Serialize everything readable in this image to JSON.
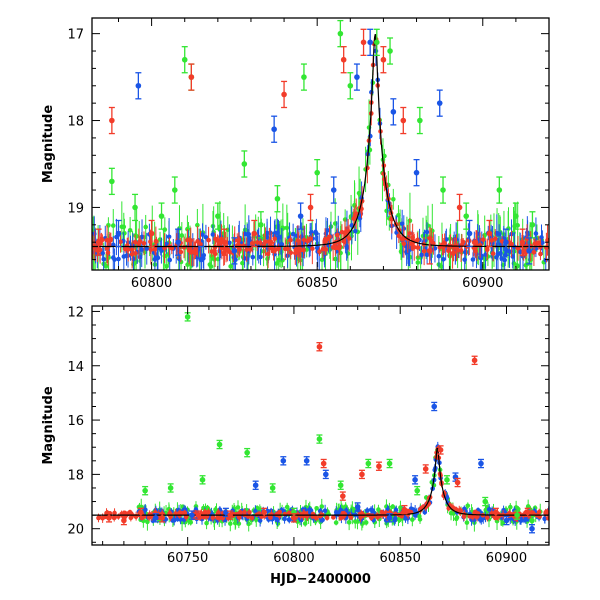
{
  "colors": {
    "green": "#33e633",
    "blue": "#1a55e6",
    "red": "#f23c2a",
    "model": "#000000",
    "frame": "#000000"
  },
  "chart_data": [
    {
      "type": "scatter",
      "panel": "top",
      "xlabel": "",
      "ylabel": "Magnitude",
      "xlim": [
        60782,
        60920
      ],
      "ylim": [
        19.72,
        16.82
      ],
      "y_inverted": true,
      "xticks": [
        60800,
        60850,
        60900
      ],
      "yticks": [
        17,
        18,
        19
      ],
      "grid": false,
      "legend": "none",
      "model_curve": {
        "peak_time": 60867.5,
        "peak_mag": 17.0,
        "baseline_mag": 19.45,
        "tE": 5.5,
        "u0": 0.11
      },
      "series": [
        {
          "color_key": "green",
          "points": [
            [
              60788,
              18.7
            ],
            [
              60795,
              19.0
            ],
            [
              60803,
              19.1
            ],
            [
              60807,
              18.8
            ],
            [
              60810,
              17.3
            ],
            [
              60812,
              17.5
            ],
            [
              60820,
              19.1
            ],
            [
              60828,
              18.5
            ],
            [
              60833,
              19.2
            ],
            [
              60838,
              18.9
            ],
            [
              60846,
              17.5
            ],
            [
              60850,
              18.6
            ],
            [
              60857,
              17.0
            ],
            [
              60860,
              17.6
            ],
            [
              60868,
              17.1
            ],
            [
              60872,
              17.2
            ],
            [
              60881,
              18.0
            ],
            [
              60888,
              18.8
            ],
            [
              60895,
              19.1
            ],
            [
              60905,
              18.8
            ],
            [
              60910,
              19.1
            ],
            [
              60915,
              19.2
            ]
          ]
        },
        {
          "color_key": "blue",
          "points": [
            [
              60790,
              19.3
            ],
            [
              60796,
              17.6
            ],
            [
              60808,
              19.4
            ],
            [
              60815,
              19.6
            ],
            [
              60825,
              19.5
            ],
            [
              60837,
              18.1
            ],
            [
              60845,
              19.1
            ],
            [
              60855,
              18.8
            ],
            [
              60862,
              17.5
            ],
            [
              60866,
              17.1
            ],
            [
              60873,
              17.9
            ],
            [
              60880,
              18.6
            ],
            [
              60887,
              17.8
            ],
            [
              60896,
              19.3
            ],
            [
              60907,
              19.4
            ],
            [
              60914,
              19.5
            ]
          ]
        },
        {
          "color_key": "red",
          "points": [
            [
              60784,
              19.4
            ],
            [
              60788,
              18.0
            ],
            [
              60800,
              19.3
            ],
            [
              60812,
              17.5
            ],
            [
              60822,
              19.4
            ],
            [
              60831,
              19.3
            ],
            [
              60840,
              17.7
            ],
            [
              60848,
              19.0
            ],
            [
              60858,
              17.3
            ],
            [
              60864,
              17.1
            ],
            [
              60870,
              17.3
            ],
            [
              60876,
              18.0
            ],
            [
              60884,
              19.5
            ],
            [
              60893,
              19.0
            ],
            [
              60902,
              19.3
            ],
            [
              60912,
              19.4
            ]
          ]
        }
      ]
    },
    {
      "type": "scatter",
      "panel": "bottom",
      "xlabel": "HJD−2400000",
      "ylabel": "Magnitude",
      "xlim": [
        60705,
        60920
      ],
      "ylim": [
        20.6,
        11.8
      ],
      "y_inverted": true,
      "xticks": [
        60750,
        60800,
        60850,
        60900
      ],
      "yticks": [
        12,
        14,
        16,
        18,
        20
      ],
      "grid": false,
      "legend": "none",
      "model_curve": {
        "peak_time": 60867.5,
        "peak_mag": 17.0,
        "baseline_mag": 19.5,
        "tE": 5.5,
        "u0": 0.11
      },
      "series": [
        {
          "color_key": "green",
          "points": [
            [
              60730,
              18.6
            ],
            [
              60742,
              18.5
            ],
            [
              60750,
              12.2
            ],
            [
              60757,
              18.2
            ],
            [
              60765,
              16.9
            ],
            [
              60778,
              17.2
            ],
            [
              60790,
              18.5
            ],
            [
              60800,
              19.4
            ],
            [
              60812,
              16.7
            ],
            [
              60822,
              18.4
            ],
            [
              60835,
              17.6
            ],
            [
              60845,
              17.6
            ],
            [
              60858,
              18.6
            ],
            [
              60872,
              18.2
            ],
            [
              60890,
              19.0
            ],
            [
              60905,
              19.5
            ],
            [
              60912,
              19.7
            ]
          ]
        },
        {
          "color_key": "blue",
          "points": [
            [
              60735,
              19.6
            ],
            [
              60752,
              19.5
            ],
            [
              60768,
              19.4
            ],
            [
              60782,
              18.4
            ],
            [
              60795,
              17.5
            ],
            [
              60806,
              17.5
            ],
            [
              60815,
              18.0
            ],
            [
              60830,
              19.2
            ],
            [
              60845,
              19.6
            ],
            [
              60857,
              18.2
            ],
            [
              60866,
              15.5
            ],
            [
              60876,
              18.1
            ],
            [
              60888,
              17.6
            ],
            [
              60900,
              19.7
            ],
            [
              60912,
              20.0
            ]
          ]
        },
        {
          "color_key": "red",
          "points": [
            [
              60713,
              19.6
            ],
            [
              60720,
              19.7
            ],
            [
              60728,
              19.4
            ],
            [
              60738,
              19.6
            ],
            [
              60755,
              19.5
            ],
            [
              60770,
              19.5
            ],
            [
              60786,
              19.4
            ],
            [
              60800,
              19.6
            ],
            [
              60812,
              13.3
            ],
            [
              60814,
              17.6
            ],
            [
              60823,
              18.8
            ],
            [
              60832,
              18.0
            ],
            [
              60840,
              17.7
            ],
            [
              60852,
              19.3
            ],
            [
              60862,
              17.8
            ],
            [
              60869,
              17.1
            ],
            [
              60877,
              18.3
            ],
            [
              60885,
              13.8
            ],
            [
              60895,
              19.4
            ],
            [
              60910,
              19.4
            ]
          ]
        }
      ]
    }
  ]
}
